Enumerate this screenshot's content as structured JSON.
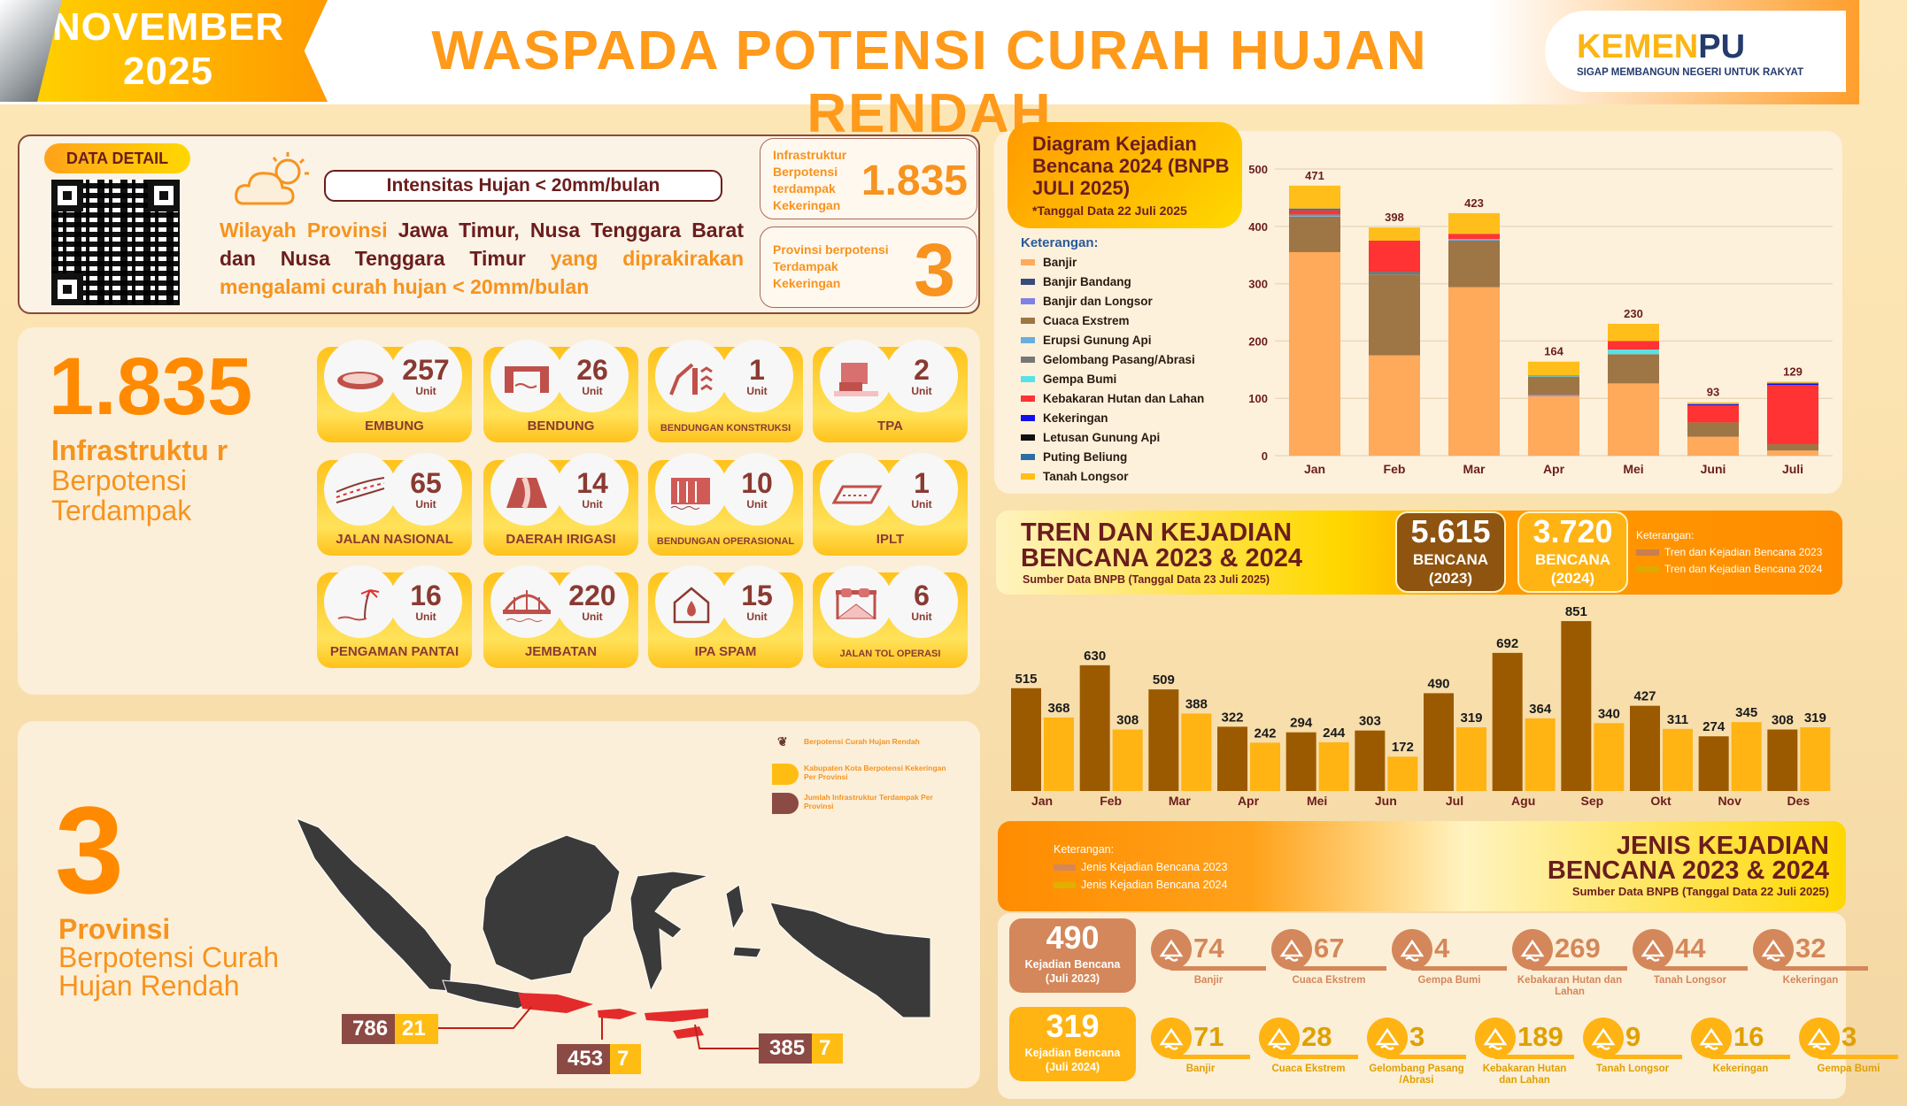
{
  "header": {
    "month": "NOVEMBER",
    "year": "2025",
    "title": "WASPADA POTENSI CURAH HUJAN RENDAH",
    "logo": {
      "brand_a": "KEMEN",
      "brand_b": "PU",
      "tagline": "SIGAP MEMBANGUN NEGERI UNTUK RAKYAT"
    }
  },
  "summary": {
    "data_detail": "DATA DETAIL",
    "intensity": "Intensitas Hujan < 20mm/bulan",
    "desc_a": "Wilayah Provinsi ",
    "desc_b": "Jawa Timur, Nusa Tenggara Barat dan Nusa Tenggara Timur",
    "desc_c": " yang diprakirakan mengalami curah hujan < 20mm/bulan",
    "card1_label": "Infrastruktur Berpotensi terdampak Kekeringan",
    "card1_value": "1.835",
    "card2_label": "Provinsi berpotensi Terdampak Kekeringan",
    "card2_value": "3"
  },
  "infrastructure": {
    "total": "1.835",
    "caption_a": "Infrastruktu r",
    "caption_b": " Berpotensi Terdampak",
    "unit": "Unit",
    "items": [
      {
        "name": "EMBUNG",
        "count": "257",
        "icon": "pond-icon"
      },
      {
        "name": "BENDUNG",
        "count": "26",
        "icon": "weir-icon"
      },
      {
        "name": "BENDUNGAN KONSTRUKSI",
        "count": "1",
        "icon": "dam-construction-icon"
      },
      {
        "name": "TPA",
        "count": "2",
        "icon": "garbage-truck-icon"
      },
      {
        "name": "JALAN NASIONAL",
        "count": "65",
        "icon": "road-icon"
      },
      {
        "name": "DAERAH IRIGASI",
        "count": "14",
        "icon": "irrigation-icon"
      },
      {
        "name": "BENDUNGAN OPERASIONAL",
        "count": "10",
        "icon": "dam-icon"
      },
      {
        "name": "IPLT",
        "count": "1",
        "icon": "treatment-plant-icon"
      },
      {
        "name": "PENGAMAN PANTAI",
        "count": "16",
        "icon": "palm-beach-icon"
      },
      {
        "name": "JEMBATAN",
        "count": "220",
        "icon": "bridge-icon"
      },
      {
        "name": "IPA SPAM",
        "count": "15",
        "icon": "water-house-icon"
      },
      {
        "name": "JALAN TOL OPERASI",
        "count": "6",
        "icon": "toll-gate-icon"
      }
    ]
  },
  "provinces": {
    "total": "3",
    "caption_a": "Provinsi",
    "caption_b": "Berpotensi Curah Hujan Rendah",
    "legend": [
      "Berpotensi Curah Hujan Rendah",
      "Kabupaten Kota Berpotensi Kekeringan Per Provinsi",
      "Jumlah Infrastruktur Terdampak Per Provinsi"
    ],
    "badges": [
      {
        "province": "Jawa Timur",
        "infra": "786",
        "kabkota": "21"
      },
      {
        "province": "Nusa Tenggara Barat",
        "infra": "453",
        "kabkota": "7"
      },
      {
        "province": "Nusa Tenggara Timur",
        "infra": "385",
        "kabkota": "7"
      }
    ]
  },
  "colors": {
    "accent": "#f7931e",
    "maroon": "#6b1d1d",
    "y2023": "#9c5a00",
    "y2024": "#ffb414"
  },
  "chart_data": [
    {
      "type": "bar",
      "stacked": true,
      "title": "Diagram Kejadian Bencana 2024 (BNPB JULI 2025)",
      "subtitle": "*Tanggal Data 22 Juli 2025",
      "legend_title": "Keterangan:",
      "categories": [
        "Jan",
        "Feb",
        "Mar",
        "Apr",
        "Mei",
        "Juni",
        "Juli"
      ],
      "totals": [
        471,
        398,
        423,
        164,
        230,
        93,
        129
      ],
      "ylim": [
        0,
        500
      ],
      "yticks": [
        0,
        100,
        200,
        300,
        400,
        500
      ],
      "grid": true,
      "legend_position": "left",
      "series": [
        {
          "name": "Banjir",
          "color": "#ffa95a",
          "values": [
            355,
            175,
            294,
            104,
            126,
            33,
            9
          ]
        },
        {
          "name": "Banjir Bandang",
          "color": "#3a4a7a",
          "values": [
            0,
            0,
            0,
            0,
            0,
            0,
            0
          ]
        },
        {
          "name": "Banjir dan Longsor",
          "color": "#8080e6",
          "values": [
            0,
            0,
            0,
            2,
            0,
            0,
            0
          ]
        },
        {
          "name": "Cuaca Exstrem",
          "color": "#9e7545",
          "values": [
            62,
            141,
            81,
            32,
            51,
            25,
            11
          ]
        },
        {
          "name": "Erupsi Gunung Api",
          "color": "#6aaede",
          "values": [
            2,
            0,
            3,
            0,
            0,
            0,
            0
          ]
        },
        {
          "name": "Gelombang Pasang/Abrasi",
          "color": "#777777",
          "values": [
            2,
            5,
            0,
            0,
            0,
            0,
            0
          ]
        },
        {
          "name": "Gempa Bumi",
          "color": "#55e3e8",
          "values": [
            0,
            0,
            0,
            1,
            8,
            0,
            0
          ]
        },
        {
          "name": "Kebakaran Hutan dan Lahan",
          "color": "#ff3333",
          "values": [
            7,
            54,
            9,
            1,
            15,
            30,
            103
          ]
        },
        {
          "name": "Kekeringan",
          "color": "#1010ee",
          "values": [
            0,
            0,
            0,
            0,
            0,
            2,
            2
          ]
        },
        {
          "name": "Letusan Gunung Api",
          "color": "#111111",
          "values": [
            0,
            0,
            0,
            0,
            0,
            0,
            0
          ]
        },
        {
          "name": "Puting Beliung",
          "color": "#2a6ea6",
          "values": [
            3,
            0,
            0,
            0,
            0,
            0,
            2
          ]
        },
        {
          "name": "Tanah Longsor",
          "color": "#ffbe1a",
          "values": [
            40,
            23,
            36,
            24,
            30,
            3,
            2
          ]
        }
      ]
    },
    {
      "type": "bar",
      "title": "TREN DAN KEJADIAN BENCANA 2023 & 2024",
      "subtitle": "Sumber Data BNPB (Tanggal Data 23 Juli 2025)",
      "categories": [
        "Jan",
        "Feb",
        "Mar",
        "Apr",
        "Mei",
        "Jun",
        "Jul",
        "Agu",
        "Sep",
        "Okt",
        "Nov",
        "Des"
      ],
      "totals": [
        {
          "value": "5.615",
          "label": "BENCANA",
          "year": "(2023)"
        },
        {
          "value": "3.720",
          "label": "BENCANA",
          "year": "(2024)"
        }
      ],
      "legend_title": "Keterangan:",
      "legend_position": "top-right",
      "series": [
        {
          "name": "Tren dan Kejadian Bencana 2023",
          "values": [
            515,
            630,
            509,
            322,
            294,
            303,
            490,
            692,
            851,
            427,
            274,
            308
          ]
        },
        {
          "name": "Tren dan Kejadian Bencana 2024",
          "values": [
            368,
            308,
            388,
            242,
            244,
            172,
            319,
            364,
            340,
            311,
            345,
            319
          ]
        }
      ]
    }
  ],
  "jenis": {
    "title_a": "JENIS KEJADIAN",
    "title_b": "BENCANA 2023 & 2024",
    "source": "Sumber Data BNPB (Tanggal Data 22 Juli 2025)",
    "legend_title": "Keterangan:",
    "legend": [
      "Jenis Kejadian Bencana 2023",
      "Jenis Kejadian Bencana 2024"
    ],
    "rows": [
      {
        "total": "490",
        "label": "Kejadian Bencana",
        "period": "(Juli 2023)",
        "items": [
          {
            "name": "Banjir",
            "value": "74",
            "icon": "flood-house-icon"
          },
          {
            "name": "Cuaca Ekstrem",
            "value": "67",
            "icon": "storm-icon"
          },
          {
            "name": "Gempa Bumi",
            "value": "4",
            "icon": "earthquake-icon"
          },
          {
            "name": "Kebakaran Hutan dan Lahan",
            "value": "269",
            "icon": "forest-fire-icon"
          },
          {
            "name": "Tanah Longsor",
            "value": "44",
            "icon": "landslide-icon"
          },
          {
            "name": "Kekeringan",
            "value": "32",
            "icon": "drought-icon"
          }
        ]
      },
      {
        "total": "319",
        "label": "Kejadian Bencana",
        "period": "(Juli 2024)",
        "items": [
          {
            "name": "Banjir",
            "value": "71",
            "icon": "flood-house-icon"
          },
          {
            "name": "Cuaca Ekstrem",
            "value": "28",
            "icon": "storm-icon"
          },
          {
            "name": "Gelombang Pasang /Abrasi",
            "value": "3",
            "icon": "wave-icon"
          },
          {
            "name": "Kebakaran Hutan dan Lahan",
            "value": "189",
            "icon": "forest-fire-icon"
          },
          {
            "name": "Tanah Longsor",
            "value": "9",
            "icon": "landslide-icon"
          },
          {
            "name": "Kekeringan",
            "value": "16",
            "icon": "drought-icon"
          },
          {
            "name": "Gempa Bumi",
            "value": "3",
            "icon": "earthquake-icon"
          }
        ]
      }
    ]
  }
}
